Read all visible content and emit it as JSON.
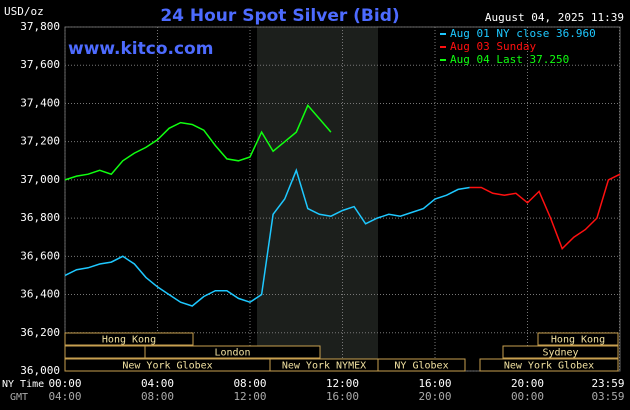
{
  "chart_data": {
    "type": "line",
    "title": "24 Hour Spot Silver (Bid)",
    "y_unit": "USD/oz",
    "timestamp": "August 04, 2025 11:39",
    "watermark": "www.kitco.com",
    "x_row_label": "NY Time",
    "x2_row_label": "GMT",
    "x": [
      0,
      0.5,
      1,
      1.5,
      2,
      2.5,
      3,
      3.5,
      4,
      4.5,
      5,
      5.5,
      6,
      6.5,
      7,
      7.5,
      8,
      8.5,
      9,
      9.5,
      10,
      10.5,
      11,
      11.5,
      12,
      12.5,
      13,
      13.5,
      14,
      14.5,
      15,
      15.5,
      16,
      16.5,
      17,
      17.5,
      18,
      18.5,
      19,
      19.5,
      20,
      20.5,
      21,
      21.5,
      22,
      22.5,
      23,
      23.5,
      24
    ],
    "series": [
      {
        "name": "Aug 01 NY close 36.960",
        "color": "#1ec8ff",
        "values": [
          36500,
          36530,
          36540,
          36560,
          36570,
          36600,
          36560,
          36490,
          36440,
          36400,
          36360,
          36340,
          36390,
          36420,
          36420,
          36380,
          36360,
          36400,
          36820,
          36900,
          37050,
          36850,
          36820,
          36810,
          36840,
          36860,
          36770,
          36800,
          36820,
          36810,
          36830,
          36850,
          36900,
          36920,
          36950,
          36960,
          null,
          null,
          null,
          null,
          null,
          null,
          null,
          null,
          null,
          null,
          null,
          null,
          null
        ]
      },
      {
        "name": "Aug 03 Sunday",
        "color": "#ff1010",
        "values": [
          null,
          null,
          null,
          null,
          null,
          null,
          null,
          null,
          null,
          null,
          null,
          null,
          null,
          null,
          null,
          null,
          null,
          null,
          null,
          null,
          null,
          null,
          null,
          null,
          null,
          null,
          null,
          null,
          null,
          null,
          null,
          null,
          null,
          null,
          null,
          36960,
          36960,
          36930,
          36920,
          36930,
          36880,
          36940,
          36800,
          36640,
          36700,
          36740,
          36800,
          37000,
          37030
        ]
      },
      {
        "name": "Aug 04 Last 37.250",
        "color": "#10ff10",
        "values": [
          37000,
          37020,
          37030,
          37050,
          37030,
          37100,
          37140,
          37170,
          37210,
          37270,
          37300,
          37290,
          37260,
          37180,
          37110,
          37100,
          37120,
          37250,
          37150,
          37200,
          37250,
          37390,
          37320,
          37250,
          null,
          null,
          null,
          null,
          null,
          null,
          null,
          null,
          null,
          null,
          null,
          null,
          null,
          null,
          null,
          null,
          null,
          null,
          null,
          null,
          null,
          null,
          null,
          null,
          null
        ]
      }
    ],
    "xlim": [
      0,
      24
    ],
    "xticks": [
      {
        "value": 0,
        "label": "00:00"
      },
      {
        "value": 4,
        "label": "04:00"
      },
      {
        "value": 8,
        "label": "08:00"
      },
      {
        "value": 12,
        "label": "12:00"
      },
      {
        "value": 16,
        "label": "16:00"
      },
      {
        "value": 20,
        "label": "20:00"
      },
      {
        "value": 23.98,
        "label": "23:59"
      }
    ],
    "x2_labels": [
      "04:00",
      "08:00",
      "12:00",
      "16:00",
      "20:00",
      "00:00",
      "03:59"
    ],
    "ylim": [
      36000,
      37800
    ],
    "yticks": [
      {
        "value": 36000,
        "label": "36,000"
      },
      {
        "value": 36200,
        "label": "36,200"
      },
      {
        "value": 36400,
        "label": "36,400"
      },
      {
        "value": 36600,
        "label": "36,600"
      },
      {
        "value": 36800,
        "label": "36,800"
      },
      {
        "value": 37000,
        "label": "37,000"
      },
      {
        "value": 37200,
        "label": "37,200"
      },
      {
        "value": 37400,
        "label": "37,400"
      },
      {
        "value": 37600,
        "label": "37,600"
      },
      {
        "value": 37800,
        "label": "37,800"
      }
    ],
    "grid": true,
    "legend": "top-right",
    "sessions": [
      "Hong Kong",
      "London",
      "New York Globex",
      "New York NYMEX",
      "NY Globex",
      "Hong Kong",
      "Sydney",
      "New York Globex"
    ]
  }
}
